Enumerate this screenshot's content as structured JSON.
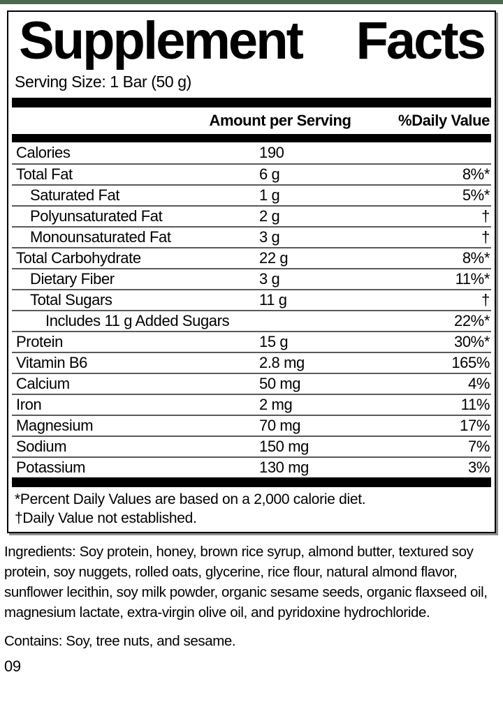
{
  "brand_bar": {
    "color": "#4d6a51"
  },
  "panel": {
    "title": {
      "word1": "Supplement",
      "word2": "Facts"
    },
    "serving_size": "Serving Size: 1 Bar (50 g)",
    "columns": {
      "amount": "Amount per Serving",
      "daily_value": "%Daily Value"
    },
    "rows": [
      {
        "name": "Calories",
        "amount": "190",
        "dv": "",
        "indent": 0
      },
      {
        "name": "Total Fat",
        "amount": "6 g",
        "dv": "8%*",
        "indent": 0
      },
      {
        "name": "Saturated Fat",
        "amount": "1 g",
        "dv": "5%*",
        "indent": 1
      },
      {
        "name": "Polyunsaturated Fat",
        "amount": "2 g",
        "dv": "†",
        "indent": 1
      },
      {
        "name": "Monounsaturated Fat",
        "amount": "3 g",
        "dv": "†",
        "indent": 1
      },
      {
        "name": "Total Carbohydrate",
        "amount": "22 g",
        "dv": "8%*",
        "indent": 0
      },
      {
        "name": "Dietary Fiber",
        "amount": "3 g",
        "dv": "11%*",
        "indent": 1
      },
      {
        "name": "Total Sugars",
        "amount": "11 g",
        "dv": "†",
        "indent": 1
      },
      {
        "name": "Includes 11 g Added Sugars",
        "amount": "",
        "dv": "22%*",
        "indent": 2
      },
      {
        "name": "Protein",
        "amount": "15 g",
        "dv": "30%*",
        "indent": 0
      },
      {
        "name": "Vitamin B6",
        "amount": "2.8 mg",
        "dv": "165%",
        "indent": 0
      },
      {
        "name": "Calcium",
        "amount": "50 mg",
        "dv": "4%",
        "indent": 0
      },
      {
        "name": "Iron",
        "amount": "2 mg",
        "dv": "11%",
        "indent": 0
      },
      {
        "name": "Magnesium",
        "amount": "70 mg",
        "dv": "17%",
        "indent": 0
      },
      {
        "name": "Sodium",
        "amount": "150 mg",
        "dv": "7%",
        "indent": 0
      },
      {
        "name": "Potassium",
        "amount": "130 mg",
        "dv": "3%",
        "indent": 0
      }
    ],
    "footnotes": [
      "*Percent Daily Values are based on a 2,000 calorie diet.",
      "†Daily Value not established."
    ]
  },
  "ingredients_text": "Ingredients: Soy protein, honey, brown rice syrup, almond butter, textured soy protein, soy nuggets, rolled oats, glycerine, rice flour, natural almond flavor, sunflower lecithin, soy milk powder, organic sesame seeds, organic flaxseed oil, magnesium lactate, extra-virgin olive oil, and pyridoxine hydrochloride.",
  "contains_text": "Contains: Soy, tree nuts, and sesame.",
  "lot_code": "09"
}
